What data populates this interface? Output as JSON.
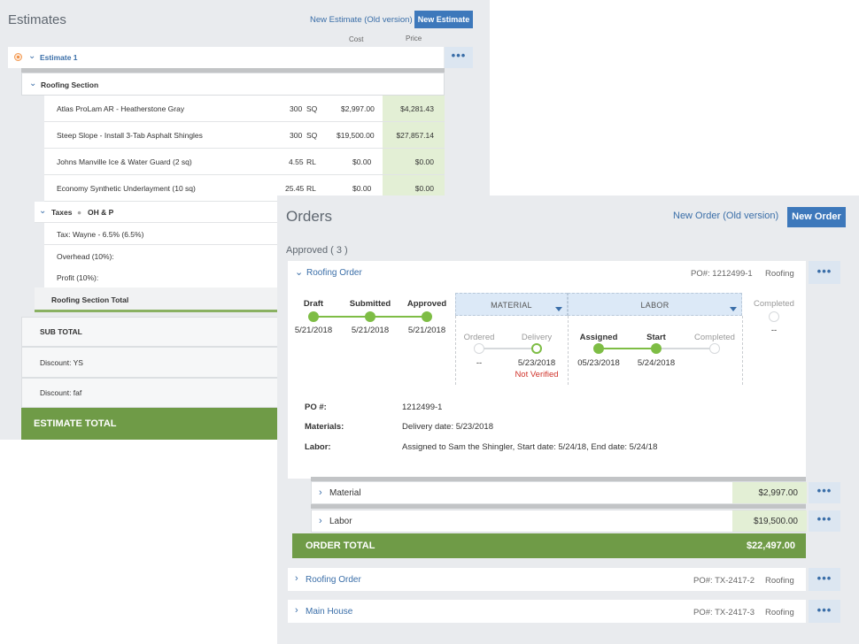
{
  "estimates": {
    "title": "Estimates",
    "new_old_link": "New Estimate (Old version)",
    "new_button": "New Estimate",
    "cost_header": "Cost",
    "price_header": "Price",
    "estimate_name": "Estimate 1",
    "more": "•••",
    "section": {
      "name": "Roofing Section",
      "items": [
        {
          "name": "Atlas ProLam AR - Heatherstone Gray",
          "qty": "300",
          "unit": "SQ",
          "cost": "$2,997.00",
          "price": "$4,281.43"
        },
        {
          "name": "Steep Slope - Install 3-Tab Asphalt Shingles",
          "qty": "300",
          "unit": "SQ",
          "cost": "$19,500.00",
          "price": "$27,857.14"
        },
        {
          "name": "Johns Manville Ice & Water Guard (2 sq)",
          "qty": "4.55",
          "unit": "RL",
          "cost": "$0.00",
          "price": "$0.00"
        },
        {
          "name": "Economy Synthetic Underlayment (10 sq)",
          "qty": "25.45",
          "unit": "RL",
          "cost": "$0.00",
          "price": "$0.00"
        }
      ],
      "taxes_label": "Taxes",
      "ohp_label": "OH & P",
      "tax_rows": [
        "Tax: Wayne - 6.5% (6.5%)",
        "Overhead (10%):",
        "Profit (10%):"
      ],
      "section_total_label": "Roofing Section Total"
    },
    "sub_total_label": "SUB TOTAL",
    "discount1": "Discount: YS",
    "discount2": "Discount: faf",
    "estimate_total_label": "ESTIMATE TOTAL"
  },
  "orders": {
    "title": "Orders",
    "new_old_link": "New Order (Old version)",
    "new_button": "New Order",
    "approved_label": "Approved ( 3 )",
    "more": "•••",
    "expanded": {
      "name": "Roofing Order",
      "po": "PO#: 1212499-1",
      "type": "Roofing",
      "stages": {
        "draft": {
          "label": "Draft",
          "date": "5/21/2018"
        },
        "submitted": {
          "label": "Submitted",
          "date": "5/21/2018"
        },
        "approved": {
          "label": "Approved",
          "date": "5/21/2018"
        },
        "material_group": "MATERIAL",
        "labor_group": "LABOR",
        "ordered": {
          "label": "Ordered",
          "date": "--"
        },
        "delivery": {
          "label": "Delivery",
          "date": "5/23/2018",
          "note": "Not Verified"
        },
        "assigned": {
          "label": "Assigned",
          "date": "05/23/2018"
        },
        "start": {
          "label": "Start",
          "date": "5/24/2018"
        },
        "labor_completed": {
          "label": "Completed",
          "date": ""
        },
        "completed": {
          "label": "Completed",
          "date": "--"
        }
      },
      "details": {
        "po_label": "PO #:",
        "po_value": "1212499-1",
        "materials_label": "Materials:",
        "materials_value": "Delivery date: 5/23/2018",
        "labor_label": "Labor:",
        "labor_value": "Assigned to Sam the Shingler, Start date: 5/24/18, End date: 5/24/18"
      },
      "lines": [
        {
          "label": "Material",
          "amount": "$2,997.00"
        },
        {
          "label": "Labor",
          "amount": "$19,500.00"
        }
      ],
      "total_label": "ORDER TOTAL",
      "total_value": "$22,497.00"
    },
    "collapsed": [
      {
        "name": "Roofing Order",
        "po": "PO#: TX-2417-2",
        "type": "Roofing"
      },
      {
        "name": "Main House",
        "po": "PO#: TX-2417-3",
        "type": "Roofing"
      }
    ]
  },
  "colors": {
    "accent": "#3d78bb",
    "total_green": "#6f9b47",
    "progress_green": "#7ebd45",
    "price_bg": "#e3efd5"
  }
}
